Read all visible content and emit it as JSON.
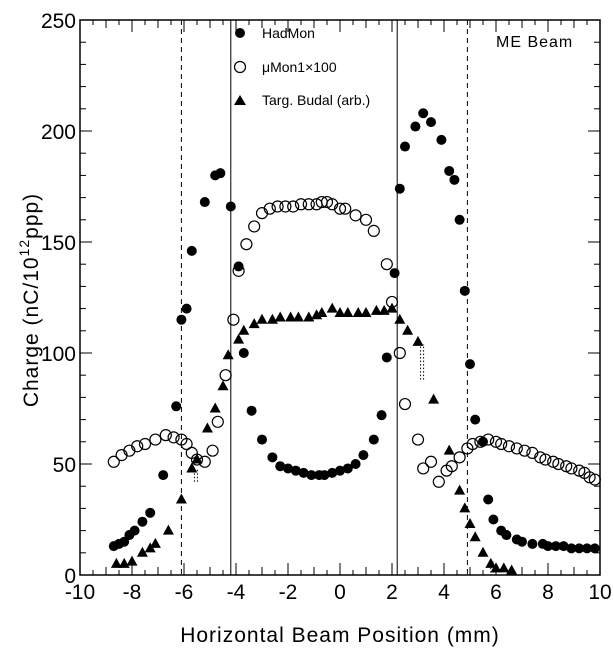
{
  "chart_data": {
    "type": "scatter",
    "xlabel": "Horizontal Beam Position (mm)",
    "ylabel_main": "Charge (nC/10",
    "ylabel_sup": "12",
    "ylabel_tail": "ppp)",
    "annotation": "ME Beam",
    "xlim": [
      -10,
      10
    ],
    "ylim": [
      0,
      250
    ],
    "xticks": [
      "-10",
      "-8",
      "-6",
      "-4",
      "-2",
      "0",
      "2",
      "4",
      "6",
      "8",
      "10"
    ],
    "yticks": [
      "0",
      "50",
      "100",
      "150",
      "200",
      "250"
    ],
    "xtick_values": [
      -10,
      -8,
      -6,
      -4,
      -2,
      0,
      2,
      4,
      6,
      8,
      10
    ],
    "ytick_values": [
      0,
      50,
      100,
      150,
      200,
      250
    ],
    "vertical_lines": [
      {
        "x": -6.1,
        "style": "dashed"
      },
      {
        "x": -4.2,
        "style": "solid"
      },
      {
        "x": 2.2,
        "style": "solid"
      },
      {
        "x": 4.9,
        "style": "dashed"
      }
    ],
    "series": [
      {
        "name": "HadMon",
        "marker": "filled-circle",
        "points": [
          [
            -8.7,
            13
          ],
          [
            -8.5,
            14
          ],
          [
            -8.3,
            15
          ],
          [
            -8.1,
            18
          ],
          [
            -7.9,
            20
          ],
          [
            -7.6,
            24
          ],
          [
            -7.3,
            28
          ],
          [
            -6.8,
            45
          ],
          [
            -6.3,
            76
          ],
          [
            -6.1,
            115
          ],
          [
            -5.9,
            120
          ],
          [
            -5.7,
            146
          ],
          [
            -5.2,
            168
          ],
          [
            -4.8,
            180
          ],
          [
            -4.6,
            181
          ],
          [
            -4.2,
            166
          ],
          [
            -3.9,
            139
          ],
          [
            -3.7,
            100
          ],
          [
            -3.4,
            74
          ],
          [
            -3.0,
            61
          ],
          [
            -2.6,
            53
          ],
          [
            -2.3,
            49
          ],
          [
            -2.0,
            48
          ],
          [
            -1.7,
            47
          ],
          [
            -1.4,
            46
          ],
          [
            -1.1,
            45
          ],
          [
            -0.8,
            45
          ],
          [
            -0.6,
            45
          ],
          [
            -0.3,
            46
          ],
          [
            0.0,
            47
          ],
          [
            0.3,
            48
          ],
          [
            0.6,
            50
          ],
          [
            0.9,
            54
          ],
          [
            1.3,
            61
          ],
          [
            1.6,
            72
          ],
          [
            1.8,
            98
          ],
          [
            2.1,
            136
          ],
          [
            2.3,
            174
          ],
          [
            2.5,
            193
          ],
          [
            2.9,
            202
          ],
          [
            3.2,
            208
          ],
          [
            3.5,
            204
          ],
          [
            3.9,
            196
          ],
          [
            4.2,
            182
          ],
          [
            4.4,
            178
          ],
          [
            4.6,
            160
          ],
          [
            4.8,
            128
          ],
          [
            5.0,
            95
          ],
          [
            5.2,
            70
          ],
          [
            5.5,
            60
          ],
          [
            5.7,
            34
          ],
          [
            5.9,
            25
          ],
          [
            6.2,
            20
          ],
          [
            6.4,
            18
          ],
          [
            6.8,
            16
          ],
          [
            7.0,
            15
          ],
          [
            7.4,
            14
          ],
          [
            7.8,
            14
          ],
          [
            8.0,
            13
          ],
          [
            8.3,
            13
          ],
          [
            8.6,
            13
          ],
          [
            8.9,
            12
          ],
          [
            9.2,
            12
          ],
          [
            9.5,
            12
          ],
          [
            9.8,
            12
          ]
        ]
      },
      {
        "name": "μMon1×100",
        "marker": "open-circle",
        "points": [
          [
            -8.7,
            51
          ],
          [
            -8.4,
            54
          ],
          [
            -8.1,
            56
          ],
          [
            -7.8,
            58
          ],
          [
            -7.5,
            59
          ],
          [
            -7.1,
            61
          ],
          [
            -6.7,
            63
          ],
          [
            -6.4,
            62
          ],
          [
            -6.1,
            61
          ],
          [
            -5.9,
            59
          ],
          [
            -5.7,
            55
          ],
          [
            -5.5,
            52
          ],
          [
            -5.2,
            51
          ],
          [
            -4.9,
            56
          ],
          [
            -4.7,
            69
          ],
          [
            -4.4,
            90
          ],
          [
            -4.1,
            115
          ],
          [
            -3.9,
            137
          ],
          [
            -3.6,
            149
          ],
          [
            -3.3,
            157
          ],
          [
            -3.0,
            163
          ],
          [
            -2.7,
            165
          ],
          [
            -2.4,
            166
          ],
          [
            -2.1,
            166
          ],
          [
            -1.8,
            166
          ],
          [
            -1.5,
            167
          ],
          [
            -1.2,
            167
          ],
          [
            -0.9,
            167
          ],
          [
            -0.7,
            168
          ],
          [
            -0.5,
            168
          ],
          [
            -0.3,
            167
          ],
          [
            0.0,
            165
          ],
          [
            0.2,
            165
          ],
          [
            0.6,
            162
          ],
          [
            1.0,
            160
          ],
          [
            1.3,
            155
          ],
          [
            1.8,
            140
          ],
          [
            2.0,
            123
          ],
          [
            2.3,
            100
          ],
          [
            2.5,
            77
          ],
          [
            3.0,
            61
          ],
          [
            3.2,
            48
          ],
          [
            3.5,
            51
          ],
          [
            3.8,
            42
          ],
          [
            4.1,
            47
          ],
          [
            4.3,
            49
          ],
          [
            4.6,
            53
          ],
          [
            4.9,
            57
          ],
          [
            5.1,
            59
          ],
          [
            5.4,
            60
          ],
          [
            5.7,
            61
          ],
          [
            6.0,
            60
          ],
          [
            6.2,
            59
          ],
          [
            6.5,
            58
          ],
          [
            6.8,
            57
          ],
          [
            7.1,
            56
          ],
          [
            7.4,
            55
          ],
          [
            7.7,
            53
          ],
          [
            7.9,
            52
          ],
          [
            8.2,
            51
          ],
          [
            8.4,
            50
          ],
          [
            8.7,
            49
          ],
          [
            8.9,
            48
          ],
          [
            9.2,
            47
          ],
          [
            9.4,
            46
          ],
          [
            9.6,
            44
          ],
          [
            9.8,
            43
          ]
        ]
      },
      {
        "name": "Targ. Budal (arb.)",
        "marker": "filled-triangle",
        "points": [
          [
            -8.6,
            5
          ],
          [
            -8.3,
            5
          ],
          [
            -8.0,
            6
          ],
          [
            -7.6,
            10
          ],
          [
            -7.3,
            12
          ],
          [
            -7.1,
            14
          ],
          [
            -6.6,
            20
          ],
          [
            -6.1,
            34
          ],
          [
            -5.7,
            48
          ],
          [
            -5.5,
            52
          ],
          [
            -5.1,
            66
          ],
          [
            -4.8,
            75
          ],
          [
            -4.5,
            85
          ],
          [
            -4.3,
            99
          ],
          [
            -3.9,
            106
          ],
          [
            -3.7,
            110
          ],
          [
            -3.3,
            113
          ],
          [
            -3.0,
            115
          ],
          [
            -2.6,
            115
          ],
          [
            -2.3,
            116
          ],
          [
            -1.9,
            116
          ],
          [
            -1.6,
            116
          ],
          [
            -1.2,
            116
          ],
          [
            -0.9,
            117
          ],
          [
            -0.7,
            118
          ],
          [
            -0.3,
            120
          ],
          [
            0.0,
            118
          ],
          [
            0.3,
            118
          ],
          [
            0.7,
            118
          ],
          [
            1.0,
            118
          ],
          [
            1.4,
            119
          ],
          [
            1.7,
            119
          ],
          [
            2.0,
            120
          ],
          [
            2.3,
            115
          ],
          [
            2.6,
            110
          ],
          [
            3.0,
            105
          ],
          [
            3.6,
            79
          ],
          [
            4.2,
            56
          ],
          [
            4.6,
            38
          ],
          [
            4.8,
            30
          ],
          [
            5.0,
            23
          ],
          [
            5.2,
            17
          ],
          [
            5.5,
            10
          ],
          [
            5.8,
            5
          ],
          [
            6.0,
            3
          ],
          [
            6.3,
            3
          ],
          [
            6.6,
            2
          ]
        ]
      }
    ],
    "error_bars": [
      {
        "x": -5.6,
        "y_low": 42,
        "y_high": 48
      },
      {
        "x": 3.1,
        "y_low": 88,
        "y_high": 104
      },
      {
        "x": 5.8,
        "y_low": 1,
        "y_high": 6
      }
    ]
  }
}
